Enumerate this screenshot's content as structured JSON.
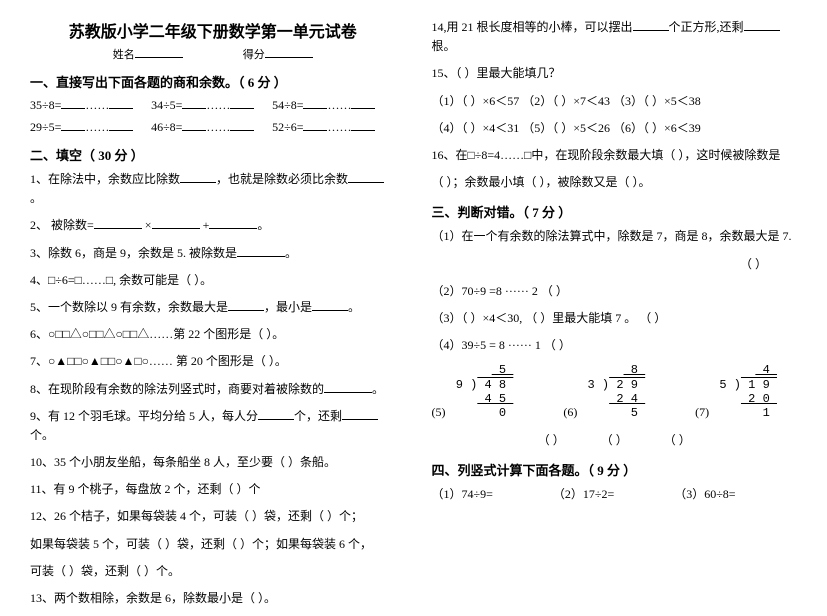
{
  "title": "苏教版小学二年级下册数学第一单元试卷",
  "name_label": "姓名",
  "score_label": "得分",
  "s1": {
    "head": "一、直接写出下面各题的商和余数。（  6 分  ）",
    "r1": {
      "a": "35÷8=",
      "b": "34÷5=",
      "c": "54÷8="
    },
    "r2": {
      "a": "29÷5=",
      "b": "46÷8=",
      "c": "52÷6="
    }
  },
  "s2": {
    "head": "二、填空（  30 分  ）",
    "q1": "1、在除法中，余数应比除数",
    "q1b": "，也就是除数必须比余数",
    "q1c": "。",
    "q2a": "2、  被除数=",
    "q2b": " ×",
    "q2c": " +",
    "q2d": "。",
    "q3": "3、除数 6，商是 9，余数是 5.  被除数是",
    "q3b": "。",
    "q4": "4、□÷6=□……□, 余数可能是（                              ）。",
    "q5": "5、一个数除以 9 有余数，余数最大是",
    "q5b": "，最小是",
    "q5c": "。",
    "q6": "6、○□□△○□□△○□□△……第 22 个图形是（        ）。",
    "q7": "7、○▲□□○▲□□○▲□○……    第 20 个图形是（        ）。",
    "q8": "8、在现阶段有余数的除法列竖式时，商要对着被除数的",
    "q8b": "。",
    "q9": "9、有 12 个羽毛球。平均分给 5 人，每人分",
    "q9b": "个，还剩",
    "q9c": "个。",
    "q10": "10、35 个小朋友坐船，每条船坐 8 人，至少要（          ）条船。",
    "q11": "11、有 9 个桃子，每盘放 2 个，还剩（        ）个",
    "q12a": "12、26 个桔子，如果每袋装 4 个，可装（        ）袋，还剩（        ）个；",
    "q12b": "如果每袋装 5 个，可装（        ）袋，还剩（        ）个；如果每袋装 6 个，",
    "q12c": "可装（        ）袋，还剩（        ）个。",
    "q13": "13、两个数相除，余数是 6，除数最小是（        ）。"
  },
  "right": {
    "q14a": "14,用 21 根长度相等的小棒，可以摆出",
    "q14b": "个正方形,还剩",
    "q14c": "根。",
    "q15": "15、（       ）里最大能填几？",
    "q15r1": "（1）（        ）×6＜57    （2）（        ）×7＜43    （3）（        ）×5＜38",
    "q15r2": "（4）（        ）×4＜31    （5）（        ）×5＜26    （6）（        ）×6＜39",
    "q16a": "16、在□÷8=4……□中，在现阶段余数最大填（    ），这时候被除数是",
    "q16b": "（    ）；余数最小填（    ），被除数又是（    ）。",
    "s3": "三、判断对错。（  7 分  ）",
    "q3_1": "（1）在一个有余数的除法算式中，除数是 7，商是 8，余数最大是 7.",
    "paren": "（        ）",
    "q3_2": "（2）70÷9  =8 ······ 2                                                           （        ）",
    "q3_3": "（3）（        ）×4＜30,  （        ）里最大能填 7 。           （        ）",
    "q3_4": "（4）39÷5  =  8 ······ 1                                                         （        ）",
    "div5_label": "(5)",
    "div6_label": "(6)",
    "div7_label": "(7)",
    "s4": "四、列竖式计算下面各题。（  9 分  ）",
    "q4_1": "（1）74÷9=",
    "q4_2": "（2）17÷2=",
    "q4_3": "（3）60÷8="
  }
}
